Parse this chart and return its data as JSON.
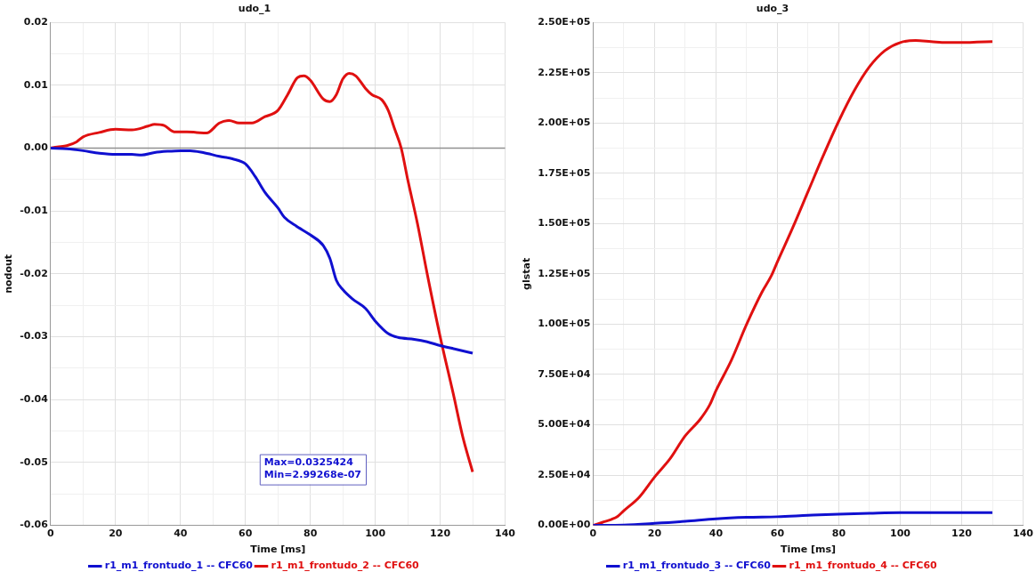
{
  "chart_data": [
    {
      "type": "line",
      "title": "udo_1",
      "xlabel": "Time [ms]",
      "ylabel": "nodout",
      "x": [
        0,
        2,
        5,
        8,
        10,
        15,
        20,
        25,
        30,
        32,
        35,
        38,
        42,
        45,
        48,
        52,
        55,
        58,
        62,
        66,
        70,
        73,
        76,
        78,
        80,
        84,
        86,
        88,
        90,
        92,
        94,
        97,
        99,
        102,
        104,
        106,
        108,
        110,
        113,
        116,
        120,
        124,
        127,
        130
      ],
      "series": [
        {
          "name": "r1_m1_frontudo_1 -- CFC60",
          "color": "#1010d0",
          "x": [
            0,
            5,
            10,
            15,
            20,
            25,
            28,
            32,
            36,
            40,
            43,
            47,
            52,
            56,
            60,
            63,
            66,
            70,
            72,
            76,
            80,
            84,
            86,
            88,
            90,
            93,
            97,
            100,
            104,
            107,
            112,
            116,
            120,
            125,
            130
          ],
          "values": [
            0,
            -0.0001,
            -0.0004,
            -0.0008,
            -0.001,
            -0.001,
            -0.0011,
            -0.0007,
            -0.0005,
            -0.0004,
            -0.0004,
            -0.0007,
            -0.0013,
            -0.0017,
            -0.0025,
            -0.0045,
            -0.007,
            -0.0095,
            -0.011,
            -0.0125,
            -0.0138,
            -0.0155,
            -0.0175,
            -0.021,
            -0.0225,
            -0.024,
            -0.0255,
            -0.0275,
            -0.0295,
            -0.0301,
            -0.0304,
            -0.0308,
            -0.0314,
            -0.032,
            -0.0326
          ]
        },
        {
          "name": "r1_m1_frontudo_2 -- CFC60",
          "color": "#e01010",
          "values": [
            0,
            0.0002,
            0.0004,
            0.001,
            0.0018,
            0.0025,
            0.003,
            0.0029,
            0.0035,
            0.0038,
            0.0036,
            0.0026,
            0.0026,
            0.0025,
            0.0024,
            0.004,
            0.0044,
            0.004,
            0.004,
            0.005,
            0.006,
            0.0085,
            0.0112,
            0.0115,
            0.0108,
            0.0078,
            0.0074,
            0.0085,
            0.011,
            0.0119,
            0.0115,
            0.0095,
            0.0085,
            0.0077,
            0.006,
            0.003,
            0,
            -0.005,
            -0.012,
            -0.02,
            -0.03,
            -0.039,
            -0.046,
            -0.0515
          ]
        }
      ],
      "xlim": [
        0,
        140
      ],
      "xticks": [
        0,
        {
          "value": 10,
          "label": null
        },
        20,
        {
          "value": 30,
          "label": null
        },
        40,
        {
          "value": 50,
          "label": null
        },
        60,
        {
          "value": 70,
          "label": null
        },
        80,
        {
          "value": 90,
          "label": null
        },
        100,
        {
          "value": 110,
          "label": null
        },
        120,
        {
          "value": 130,
          "label": null
        },
        140
      ],
      "ylim": [
        -0.06,
        0.02
      ],
      "yticks": [
        -0.06,
        {
          "value": -0.055,
          "label": null
        },
        -0.05,
        {
          "value": -0.045,
          "label": null
        },
        -0.04,
        {
          "value": -0.035,
          "label": null
        },
        -0.03,
        {
          "value": -0.025,
          "label": null
        },
        -0.02,
        {
          "value": -0.015,
          "label": null
        },
        -0.01,
        {
          "value": -0.005,
          "label": null
        },
        {
          "value": 0,
          "label": "0.00"
        },
        {
          "value": 0.005,
          "label": null
        },
        0.01,
        {
          "value": 0.015,
          "label": null
        },
        0.02
      ],
      "ref_lines": [
        {
          "axis": "y",
          "value": 0,
          "color": "#909090"
        }
      ],
      "annotations": [
        "Max=0.0325424",
        "Min=2.99268e-07"
      ],
      "grid": true,
      "legend": "bottom",
      "marker": "none",
      "line_style": "solid"
    },
    {
      "type": "line",
      "title": "udo_3",
      "xlabel": "Time [ms]",
      "ylabel": "glstat",
      "series": [
        {
          "name": "r1_m1_frontudo_3 -- CFC60",
          "color": "#1010d0",
          "x": [
            0,
            10,
            20,
            30,
            40,
            50,
            60,
            70,
            80,
            90,
            100,
            110,
            120,
            130
          ],
          "values": [
            0,
            200,
            1000,
            2000,
            3300,
            4000,
            4300,
            5000,
            5600,
            6000,
            6300,
            6300,
            6300,
            6300
          ]
        },
        {
          "name": "r1_m1_frontudo_4 -- CFC60",
          "color": "#e01010",
          "x": [
            0,
            3,
            6,
            8,
            10,
            15,
            20,
            25,
            30,
            35,
            38,
            40,
            45,
            50,
            55,
            58,
            60,
            65,
            70,
            75,
            80,
            85,
            90,
            95,
            100,
            105,
            110,
            115,
            120,
            125,
            130
          ],
          "values": [
            0,
            1500,
            3000,
            4500,
            7300,
            14000,
            24000,
            33000,
            44500,
            53000,
            60000,
            67000,
            82000,
            100000,
            116000,
            124000,
            131000,
            148000,
            166000,
            184000,
            201000,
            216000,
            228000,
            236000,
            240000,
            241000,
            240500,
            240000,
            240000,
            240200,
            240500
          ]
        }
      ],
      "xlim": [
        0,
        140
      ],
      "xticks": [
        0,
        {
          "value": 10,
          "label": null
        },
        20,
        {
          "value": 30,
          "label": null
        },
        40,
        {
          "value": 50,
          "label": null
        },
        60,
        {
          "value": 70,
          "label": null
        },
        80,
        {
          "value": 90,
          "label": null
        },
        100,
        {
          "value": 110,
          "label": null
        },
        120,
        {
          "value": 130,
          "label": null
        },
        140
      ],
      "ylim": [
        0,
        250000
      ],
      "yticks": [
        {
          "value": 0,
          "label": "0.00E+00"
        },
        {
          "value": 12500,
          "label": null
        },
        {
          "value": 25000,
          "label": "2.50E+04"
        },
        {
          "value": 37500,
          "label": null
        },
        {
          "value": 50000,
          "label": "5.00E+04"
        },
        {
          "value": 62500,
          "label": null
        },
        {
          "value": 75000,
          "label": "7.50E+04"
        },
        {
          "value": 87500,
          "label": null
        },
        {
          "value": 100000,
          "label": "1.00E+05"
        },
        {
          "value": 112500,
          "label": null
        },
        {
          "value": 125000,
          "label": "1.25E+05"
        },
        {
          "value": 137500,
          "label": null
        },
        {
          "value": 150000,
          "label": "1.50E+05"
        },
        {
          "value": 162500,
          "label": null
        },
        {
          "value": 175000,
          "label": "1.75E+05"
        },
        {
          "value": 187500,
          "label": null
        },
        {
          "value": 200000,
          "label": "2.00E+05"
        },
        {
          "value": 212500,
          "label": null
        },
        {
          "value": 225000,
          "label": "2.25E+05"
        },
        {
          "value": 237500,
          "label": null
        },
        {
          "value": 250000,
          "label": "2.50E+05"
        }
      ],
      "grid": true,
      "legend": "bottom",
      "marker": "none",
      "line_style": "solid"
    }
  ]
}
